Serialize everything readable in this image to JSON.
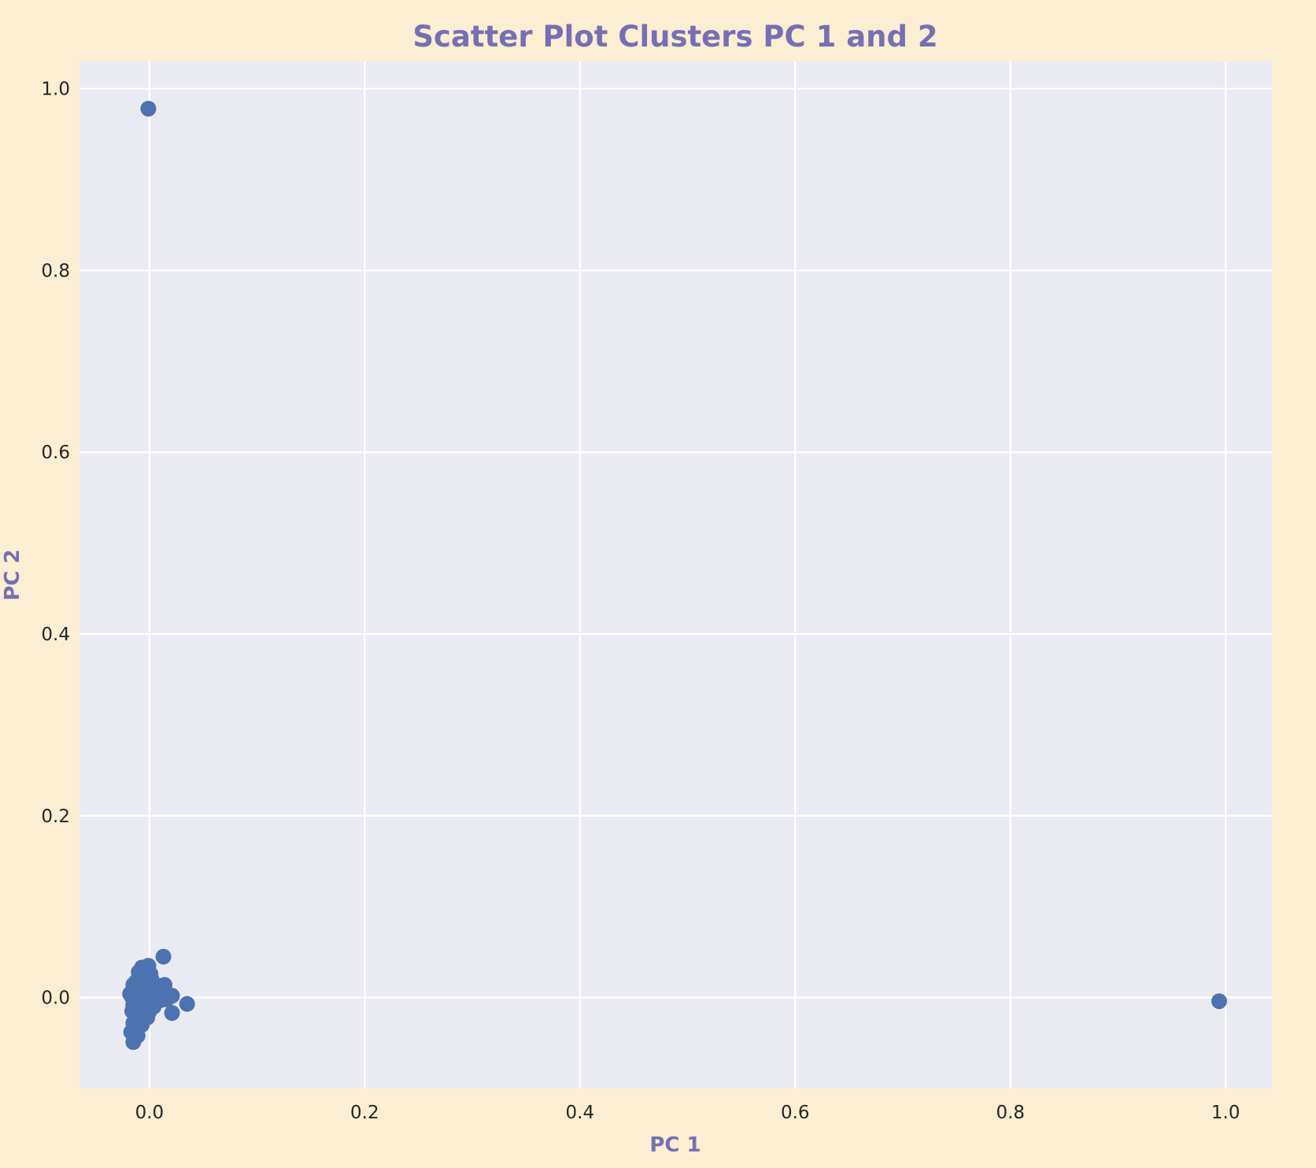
{
  "colors": {
    "background": "#FCEED3",
    "plot_area": "#EAEAF2",
    "grid": "#FFFFFF",
    "title": "#7570B3",
    "axis_label": "#7570B3",
    "tick_label": "#262626",
    "marker": "#4C72B0"
  },
  "chart_data": {
    "type": "scatter",
    "title": "Scatter Plot Clusters PC 1 and 2",
    "xlabel": "PC 1",
    "ylabel": "PC 2",
    "xlim": [
      -0.065,
      1.043
    ],
    "ylim": [
      -0.1,
      1.03
    ],
    "grid": true,
    "legend": "none",
    "xticks": [
      0.0,
      0.2,
      0.4,
      0.6,
      0.8,
      1.0
    ],
    "xtick_labels": [
      "0.0",
      "0.2",
      "0.4",
      "0.6",
      "0.8",
      "1.0"
    ],
    "yticks": [
      0.0,
      0.2,
      0.4,
      0.6,
      0.8,
      1.0
    ],
    "ytick_labels": [
      "0.0",
      "0.2",
      "0.4",
      "0.6",
      "0.8",
      "1.0"
    ],
    "series": [
      {
        "points": [
          {
            "x": -0.001,
            "y": 0.978
          },
          {
            "x": 0.994,
            "y": -0.004
          },
          {
            "x": 0.013,
            "y": 0.045
          },
          {
            "x": 0.035,
            "y": -0.007
          },
          {
            "x": 0.021,
            "y": 0.002
          },
          {
            "x": 0.021,
            "y": -0.017
          },
          {
            "x": 0.014,
            "y": 0.014
          },
          {
            "x": 0.01,
            "y": -0.003
          },
          {
            "x": 0.006,
            "y": 0.007
          },
          {
            "x": 0.004,
            "y": -0.01
          },
          {
            "x": 0.002,
            "y": 0.02
          },
          {
            "x": 0.001,
            "y": 0.002
          },
          {
            "x": 0.0,
            "y": -0.015
          },
          {
            "x": -0.001,
            "y": 0.035
          },
          {
            "x": -0.002,
            "y": 0.01
          },
          {
            "x": -0.003,
            "y": -0.005
          },
          {
            "x": -0.004,
            "y": 0.024
          },
          {
            "x": -0.005,
            "y": -0.02
          },
          {
            "x": -0.006,
            "y": 0.015
          },
          {
            "x": -0.006,
            "y": 0.0
          },
          {
            "x": -0.007,
            "y": -0.03
          },
          {
            "x": -0.007,
            "y": 0.033
          },
          {
            "x": -0.008,
            "y": 0.008
          },
          {
            "x": -0.009,
            "y": -0.012
          },
          {
            "x": -0.01,
            "y": 0.028
          },
          {
            "x": -0.01,
            "y": 0.004
          },
          {
            "x": -0.011,
            "y": -0.025
          },
          {
            "x": -0.011,
            "y": -0.042
          },
          {
            "x": -0.012,
            "y": 0.018
          },
          {
            "x": -0.013,
            "y": -0.003
          },
          {
            "x": -0.013,
            "y": -0.018
          },
          {
            "x": -0.014,
            "y": 0.01
          },
          {
            "x": -0.014,
            "y": -0.035
          },
          {
            "x": -0.015,
            "y": -0.008
          },
          {
            "x": -0.015,
            "y": 0.014
          },
          {
            "x": -0.015,
            "y": -0.028
          },
          {
            "x": -0.015,
            "y": -0.049
          },
          {
            "x": -0.016,
            "y": 0.0
          },
          {
            "x": -0.016,
            "y": -0.015
          },
          {
            "x": -0.017,
            "y": -0.038
          },
          {
            "x": -0.018,
            "y": 0.004
          },
          {
            "x": 0.008,
            "y": 0.013
          },
          {
            "x": 0.005,
            "y": -0.004
          },
          {
            "x": 0.003,
            "y": 0.011
          },
          {
            "x": -0.002,
            "y": -0.022
          },
          {
            "x": 0.011,
            "y": 0.006
          },
          {
            "x": 0.016,
            "y": -0.002
          },
          {
            "x": -0.004,
            "y": 0.004
          },
          {
            "x": 0.001,
            "y": 0.026
          },
          {
            "x": -0.009,
            "y": -0.006
          }
        ]
      }
    ]
  }
}
